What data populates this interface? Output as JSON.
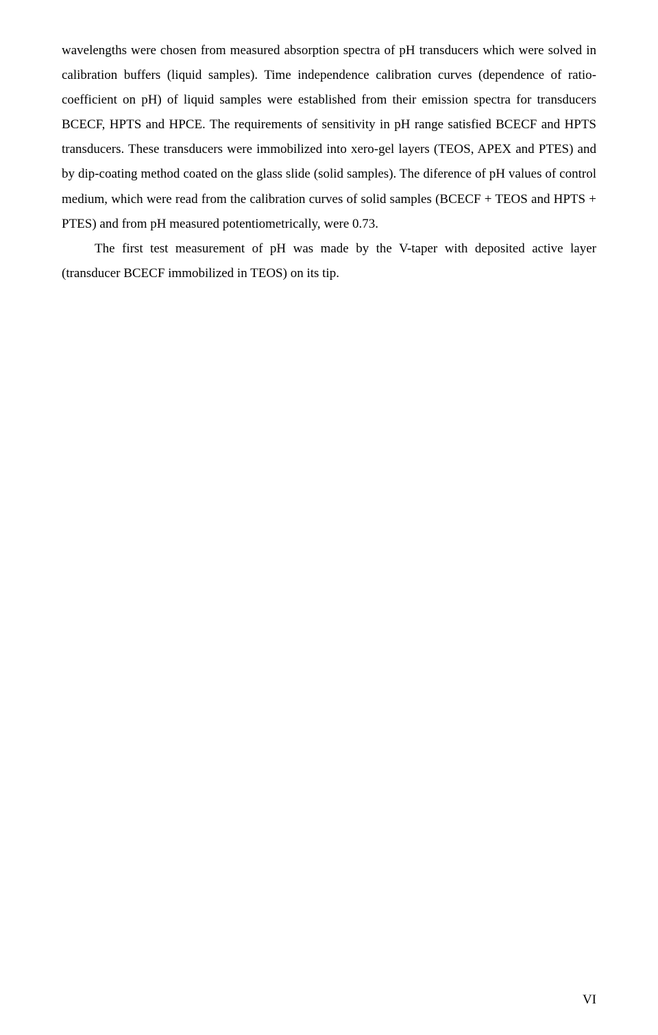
{
  "page": {
    "para1": "wavelengths were chosen from measured absorption spectra of pH transducers which were solved in calibration buffers (liquid samples). Time independence calibration curves (dependence of ratio-coefficient on pH) of liquid samples were established from their emission spectra for transducers BCECF, HPTS and HPCE. The requirements of sensitivity in pH range satisfied BCECF and HPTS transducers. These transducers were immobilized into xero-gel layers (TEOS, APEX and PTES) and by dip-coating method coated on the glass slide (solid samples). The diference of pH values of control medium, which were read from the calibration curves of solid samples (BCECF + TEOS and HPTS + PTES) and from pH measured potentiometrically, were 0.73.",
    "para2": "The first test measurement of pH was made by the V-taper with deposited active layer (transducer BCECF immobilized in TEOS) on its tip.",
    "page_number": "VI"
  }
}
